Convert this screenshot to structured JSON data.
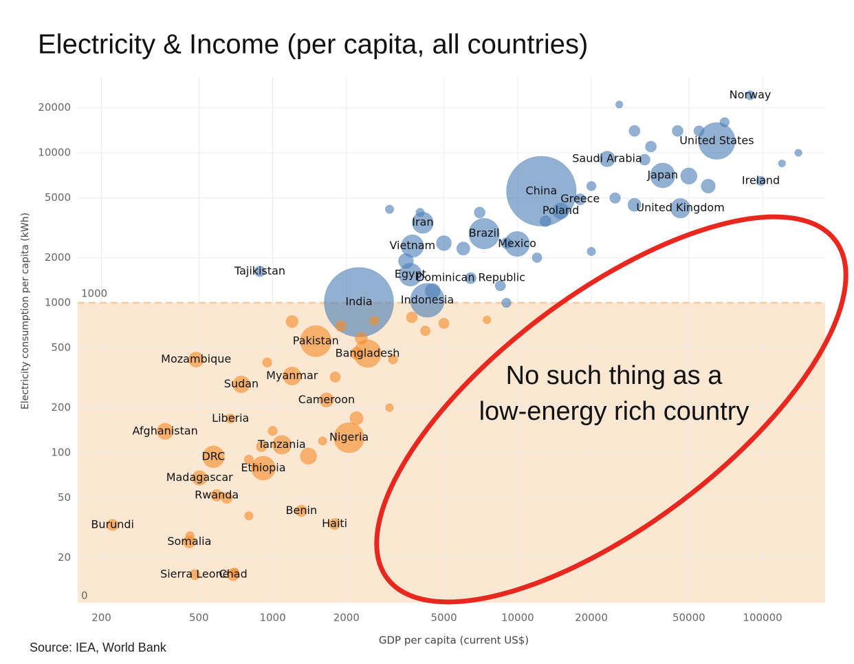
{
  "chart_data": {
    "type": "bubble",
    "title": "Electricity & Income (per capita, all countries)",
    "x_label": "GDP per capita (current US$)",
    "y_label": "Electricity consumption per capita (kWh)",
    "source": "Source: IEA, World Bank",
    "annotation": [
      "No such thing as a",
      "low-energy rich country"
    ],
    "xscale": "log",
    "yscale": "log",
    "grid": true,
    "xlim": [
      160,
      180000
    ],
    "ylim": [
      10,
      32000
    ],
    "xticks": [
      200,
      500,
      1000,
      2000,
      5000,
      10000,
      20000,
      50000,
      100000
    ],
    "yticks": [
      20,
      50,
      100,
      200,
      500,
      1000,
      2000,
      5000,
      10000,
      20000
    ],
    "band": {
      "low": 0,
      "high": 1000,
      "color": "#fbe7d2",
      "line_color": "#f6cfa5"
    },
    "series": [
      {
        "color": "#4e7fb6",
        "labels": [
          "Norway",
          "United States",
          "Saudi Arabia",
          "Japan",
          "Ireland",
          "China",
          "Greece",
          "Poland",
          "United Kingdom",
          "Iran",
          "Brazil",
          "Mexico",
          "Vietnam",
          "Tajikistan",
          "Egypt",
          "Dominican Republic",
          "India",
          "Indonesia",
          null,
          null,
          null,
          null,
          null,
          null,
          null,
          null,
          null,
          null,
          null,
          null,
          null,
          null,
          null,
          null,
          null,
          null,
          null,
          null,
          null,
          null,
          null,
          null,
          null,
          null,
          null
        ],
        "x": [
          89000,
          65000,
          23200,
          39100,
          98400,
          12500,
          18000,
          15000,
          46200,
          4100,
          7300,
          9950,
          3720,
          887,
          3650,
          6430,
          2250,
          4280,
          30000,
          45000,
          55000,
          70000,
          26000,
          140000,
          120000,
          35000,
          33000,
          50000,
          60000,
          20000,
          25000,
          30000,
          13000,
          7000,
          4000,
          3000,
          9000,
          6000,
          5000,
          20000,
          12000,
          8500,
          3500,
          4500,
          9000
        ],
        "values": [
          24200,
          12000,
          9100,
          7070,
          6500,
          5550,
          4900,
          4100,
          4270,
          3420,
          2890,
          2470,
          2390,
          1620,
          1540,
          1460,
          1010,
          1040,
          14000,
          14000,
          14000,
          16000,
          21000,
          10000,
          8500,
          11000,
          9000,
          7000,
          6000,
          6000,
          5000,
          4500,
          3500,
          4000,
          4000,
          4200,
          2500,
          2300,
          2500,
          2200,
          2000,
          1300,
          1900,
          1200,
          1000
        ],
        "sizes": [
          5,
          330,
          35,
          126,
          5,
          1400,
          11,
          38,
          67,
          84,
          212,
          128,
          97,
          9,
          102,
          11,
          1380,
          273,
          10,
          10,
          8,
          5,
          1,
          1,
          1,
          10,
          10,
          40,
          25,
          5,
          9,
          20,
          10,
          10,
          3,
          3,
          10,
          20,
          30,
          3,
          6,
          8,
          30,
          30,
          5
        ]
      },
      {
        "color": "#f28e2b",
        "labels": [
          "Pakistan",
          "Bangladesh",
          "Mozambique",
          "Myanmar",
          "Sudan",
          "Cameroon",
          "Liberia",
          "Afghanistan",
          "Nigeria",
          "Tanzania",
          "DRC",
          "Ethiopia",
          "Madagascar",
          "Rwanda",
          "Benin",
          "Haiti",
          "Burundi",
          "Somalia",
          "Sierra Leone",
          "Chad",
          null,
          null,
          null,
          null,
          null,
          null,
          null,
          null,
          null,
          null,
          null,
          null,
          null,
          null,
          null,
          null,
          null,
          null,
          null,
          null,
          null,
          null,
          null,
          null
        ],
        "x": [
          1500,
          2440,
          487,
          1200,
          745,
          1660,
          673,
          364,
          2050,
          1090,
          573,
          916,
          503,
          591,
          1310,
          1790,
          222,
          457,
          481,
          690,
          1200,
          1900,
          2600,
          3700,
          4200,
          5000,
          7500,
          2300,
          3100,
          2200,
          950,
          1800,
          3000,
          2200,
          900,
          800,
          1600,
          1000,
          850,
          650,
          1400,
          800,
          460,
          700
        ],
        "values": [
          555,
          459,
          418,
          325,
          286,
          225,
          169,
          139,
          126,
          113,
          94,
          79,
          68,
          52,
          41,
          33.5,
          33,
          25.5,
          15.4,
          15.4,
          750,
          700,
          760,
          800,
          650,
          730,
          770,
          580,
          420,
          460,
          400,
          320,
          200,
          170,
          110,
          90,
          120,
          140,
          80,
          50,
          95,
          38,
          28,
          16
        ],
        "sizes": [
          220,
          165,
          31,
          54,
          44,
          26,
          5,
          39,
          206,
          60,
          90,
          115,
          28,
          13,
          12,
          11,
          12,
          16,
          8,
          16,
          15,
          10,
          5,
          10,
          6,
          8,
          2,
          15,
          5,
          15,
          5,
          8,
          2,
          20,
          8,
          5,
          3,
          5,
          2,
          10,
          40,
          3,
          3,
          3
        ]
      }
    ]
  }
}
